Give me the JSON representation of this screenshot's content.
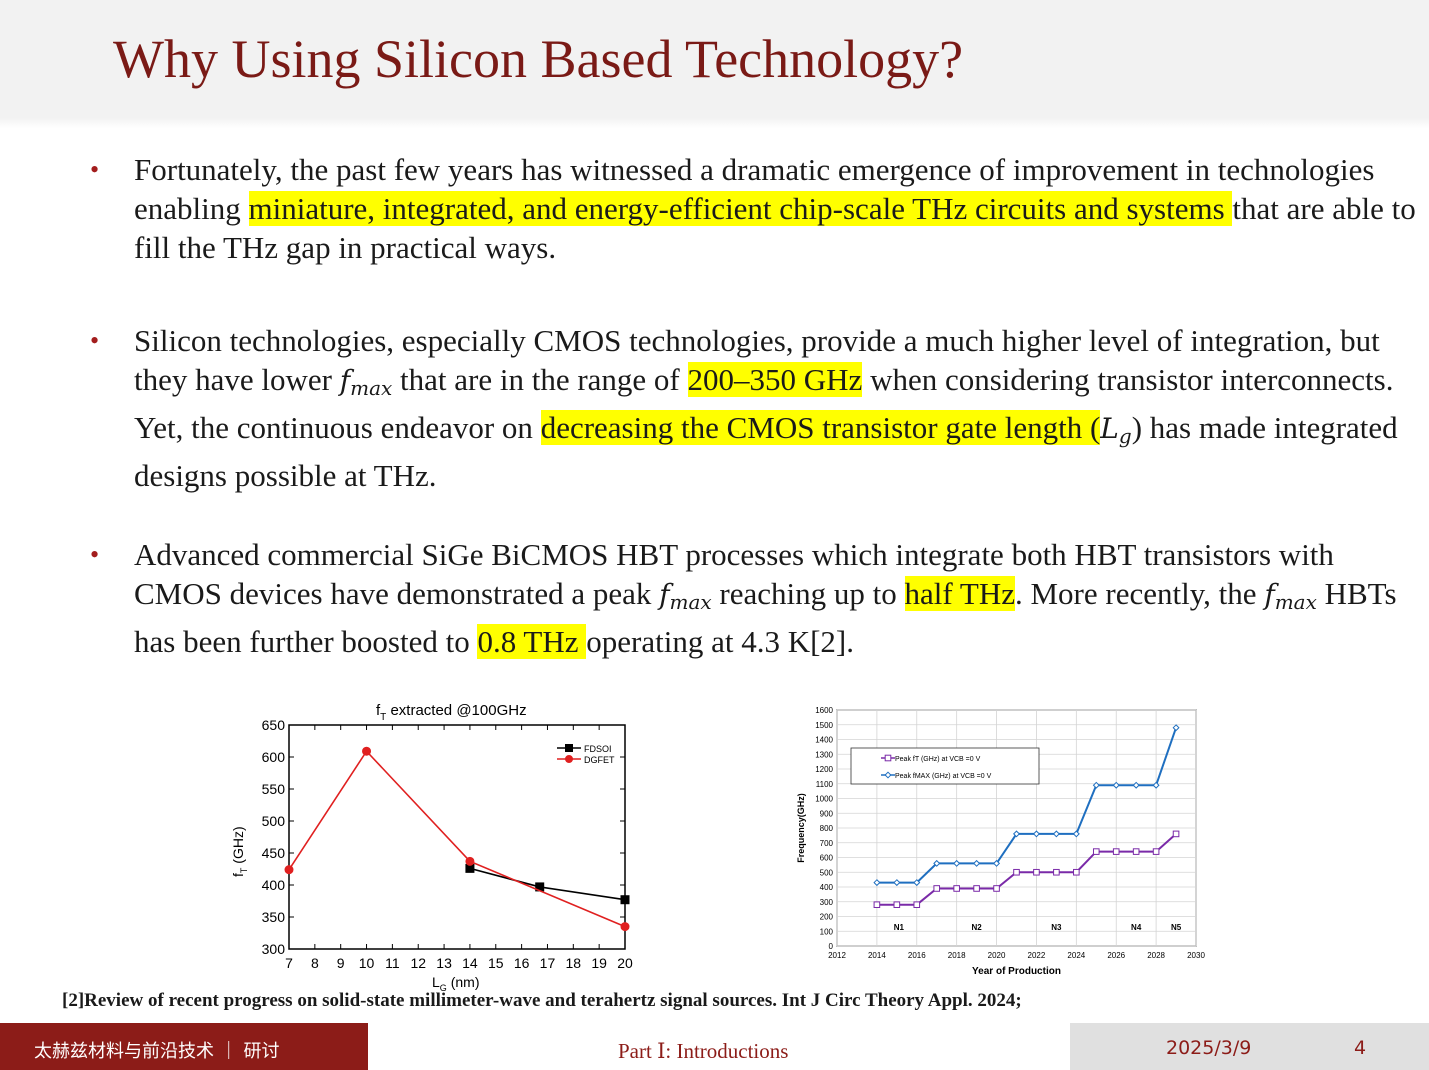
{
  "slide": {
    "title": "Why Using Silicon Based Technology?"
  },
  "bullets": {
    "b1": {
      "t1": "Fortunately, the past few years has witnessed a dramatic emergence of improvement in technologies enabling ",
      "h1": "miniature, integrated, and energy-efficient chip-scale THz circuits and systems ",
      "t2": "that are able to fill the THz gap in practical ways."
    },
    "b2": {
      "t1": "Silicon technologies, especially CMOS technologies, provide a much higher level of integration, but they have lower ",
      "m1": "f",
      "m1sub": "max",
      "t2": " that are in the range of ",
      "h1": "200–350 GHz",
      "t3": " when considering transistor interconnects. Yet, the continuous endeavor on ",
      "h2": "decreasing the CMOS transistor gate length (",
      "m2": "L",
      "m2sub": "g",
      "t4": ") has made integrated designs possible at THz."
    },
    "b3": {
      "t1": "Advanced commercial SiGe BiCMOS HBT processes which integrate both HBT transistors with CMOS devices have demonstrated a peak ",
      "m1": "f",
      "m1sub": "max",
      "t2": " reaching up to ",
      "h1": "half THz",
      "t3": ". More recently, the ",
      "m2": "f",
      "m2sub": "max",
      "t4": " HBTs has been further boosted to ",
      "h2": "0.8 THz ",
      "t5": "operating at 4.3 K[2]."
    }
  },
  "chart_data": [
    {
      "type": "line",
      "title": "fT extracted @100GHz",
      "xlabel": "LG (nm)",
      "ylabel": "fT (GHz)",
      "xlim": [
        7,
        20
      ],
      "ylim": [
        300,
        650
      ],
      "xticks": [
        "7",
        "8",
        "9",
        "10",
        "11",
        "12",
        "13",
        "14",
        "15",
        "16",
        "17",
        "18",
        "19",
        "20"
      ],
      "yticks": [
        "300",
        "350",
        "400",
        "450",
        "500",
        "550",
        "600",
        "650"
      ],
      "legend_position": "top-right",
      "series": [
        {
          "name": "FDSOI",
          "color": "#000000",
          "marker": "square",
          "x": [
            14,
            16.7,
            20
          ],
          "y": [
            426,
            397,
            377
          ]
        },
        {
          "name": "DGFET",
          "color": "#e02020",
          "marker": "circle",
          "x": [
            7,
            10,
            14,
            20
          ],
          "y": [
            424,
            609,
            437,
            335
          ]
        }
      ]
    },
    {
      "type": "line",
      "xlabel": "Year  of  Production",
      "ylabel": "Frequency(GHz)",
      "xlim": [
        2012,
        2030
      ],
      "ylim": [
        0,
        1600
      ],
      "xticks": [
        "2012",
        "2014",
        "2016",
        "2018",
        "2020",
        "2022",
        "2024",
        "2026",
        "2028",
        "2030"
      ],
      "yticks": [
        "0",
        "100",
        "200",
        "300",
        "400",
        "500",
        "600",
        "700",
        "800",
        "900",
        "1000",
        "1100",
        "1200",
        "1300",
        "1400",
        "1500",
        "1600"
      ],
      "legend_position": "top-left",
      "grid": true,
      "nodes": [
        "N1",
        "N2",
        "N3",
        "N4",
        "N5"
      ],
      "series": [
        {
          "name": "Peak fT (GHz) at VCB =0 V",
          "color": "#7a2aa8",
          "marker": "square",
          "x": [
            2014,
            2015,
            2016,
            2017,
            2018,
            2019,
            2020,
            2021,
            2022,
            2023,
            2024,
            2025,
            2026,
            2027,
            2028,
            2029
          ],
          "y": [
            280,
            280,
            280,
            390,
            390,
            390,
            390,
            500,
            500,
            500,
            500,
            640,
            640,
            640,
            640,
            760
          ]
        },
        {
          "name": "Peak fMAX (GHz) at VCB =0 V",
          "color": "#1f6fc0",
          "marker": "diamond",
          "x": [
            2014,
            2015,
            2016,
            2017,
            2018,
            2019,
            2020,
            2021,
            2022,
            2023,
            2024,
            2025,
            2026,
            2027,
            2028,
            2029
          ],
          "y": [
            430,
            430,
            430,
            560,
            560,
            560,
            560,
            760,
            760,
            760,
            760,
            1090,
            1090,
            1090,
            1090,
            1480
          ]
        }
      ]
    }
  ],
  "reference": "[2]Review of recent progress on solid-state millimeter-wave and terahertz signal sources. Int J Circ Theory Appl. 2024;",
  "footer": {
    "org": "太赫兹材料与前沿技术 ｜ 研讨",
    "section": "Part Ⅰ: Introductions",
    "date": "2025/3/9",
    "page": "4"
  },
  "colors": {
    "title": "#7a1a16",
    "highlight": "#ffff00",
    "footer_left_bg": "#8c1c18",
    "footer_right_bg": "#e0e0e0"
  }
}
